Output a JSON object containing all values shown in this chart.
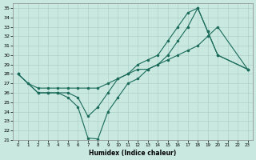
{
  "xlabel": "Humidex (Indice chaleur)",
  "bg_color": "#c8e8e0",
  "line_color": "#1a6b5a",
  "grid_color": "#a8ccc4",
  "xlim": [
    -0.5,
    23.5
  ],
  "ylim": [
    21,
    35.5
  ],
  "xticks": [
    0,
    1,
    2,
    3,
    4,
    5,
    6,
    7,
    8,
    9,
    10,
    11,
    12,
    13,
    14,
    15,
    16,
    17,
    18,
    19,
    20,
    21,
    22,
    23
  ],
  "yticks": [
    21,
    22,
    23,
    24,
    25,
    26,
    27,
    28,
    29,
    30,
    31,
    32,
    33,
    34,
    35
  ],
  "line1_x": [
    0,
    1,
    2,
    3,
    4,
    5,
    6,
    7,
    8,
    9,
    10,
    11,
    12,
    13,
    14,
    15,
    16,
    17,
    18,
    19,
    20,
    23
  ],
  "line1_y": [
    28,
    27,
    26.5,
    26.5,
    26.5,
    26.5,
    26.5,
    26.5,
    26.5,
    27,
    27.5,
    28,
    28.5,
    28.5,
    29,
    29.5,
    30,
    30.5,
    31,
    32,
    33,
    28.5
  ],
  "line2_x": [
    0,
    2,
    3,
    4,
    5,
    6,
    7,
    8,
    9,
    10,
    11,
    12,
    13,
    14,
    15,
    16,
    17,
    18,
    19,
    20,
    23
  ],
  "line2_y": [
    28,
    26,
    26,
    26,
    25.5,
    24.5,
    21.2,
    21.1,
    24,
    25.5,
    27,
    27.5,
    28.5,
    29,
    30,
    31.5,
    33,
    35,
    32.5,
    30,
    28.5
  ],
  "line3_x": [
    0,
    2,
    3,
    4,
    5,
    6,
    7,
    8,
    9,
    10,
    11,
    12,
    13,
    14,
    15,
    16,
    17,
    18,
    19,
    20,
    23
  ],
  "line3_y": [
    28,
    26,
    26,
    26,
    26,
    25.5,
    23.5,
    24.5,
    26,
    27.5,
    28,
    29,
    29.5,
    30,
    31.5,
    33,
    34.5,
    35,
    32.5,
    30,
    28.5
  ]
}
